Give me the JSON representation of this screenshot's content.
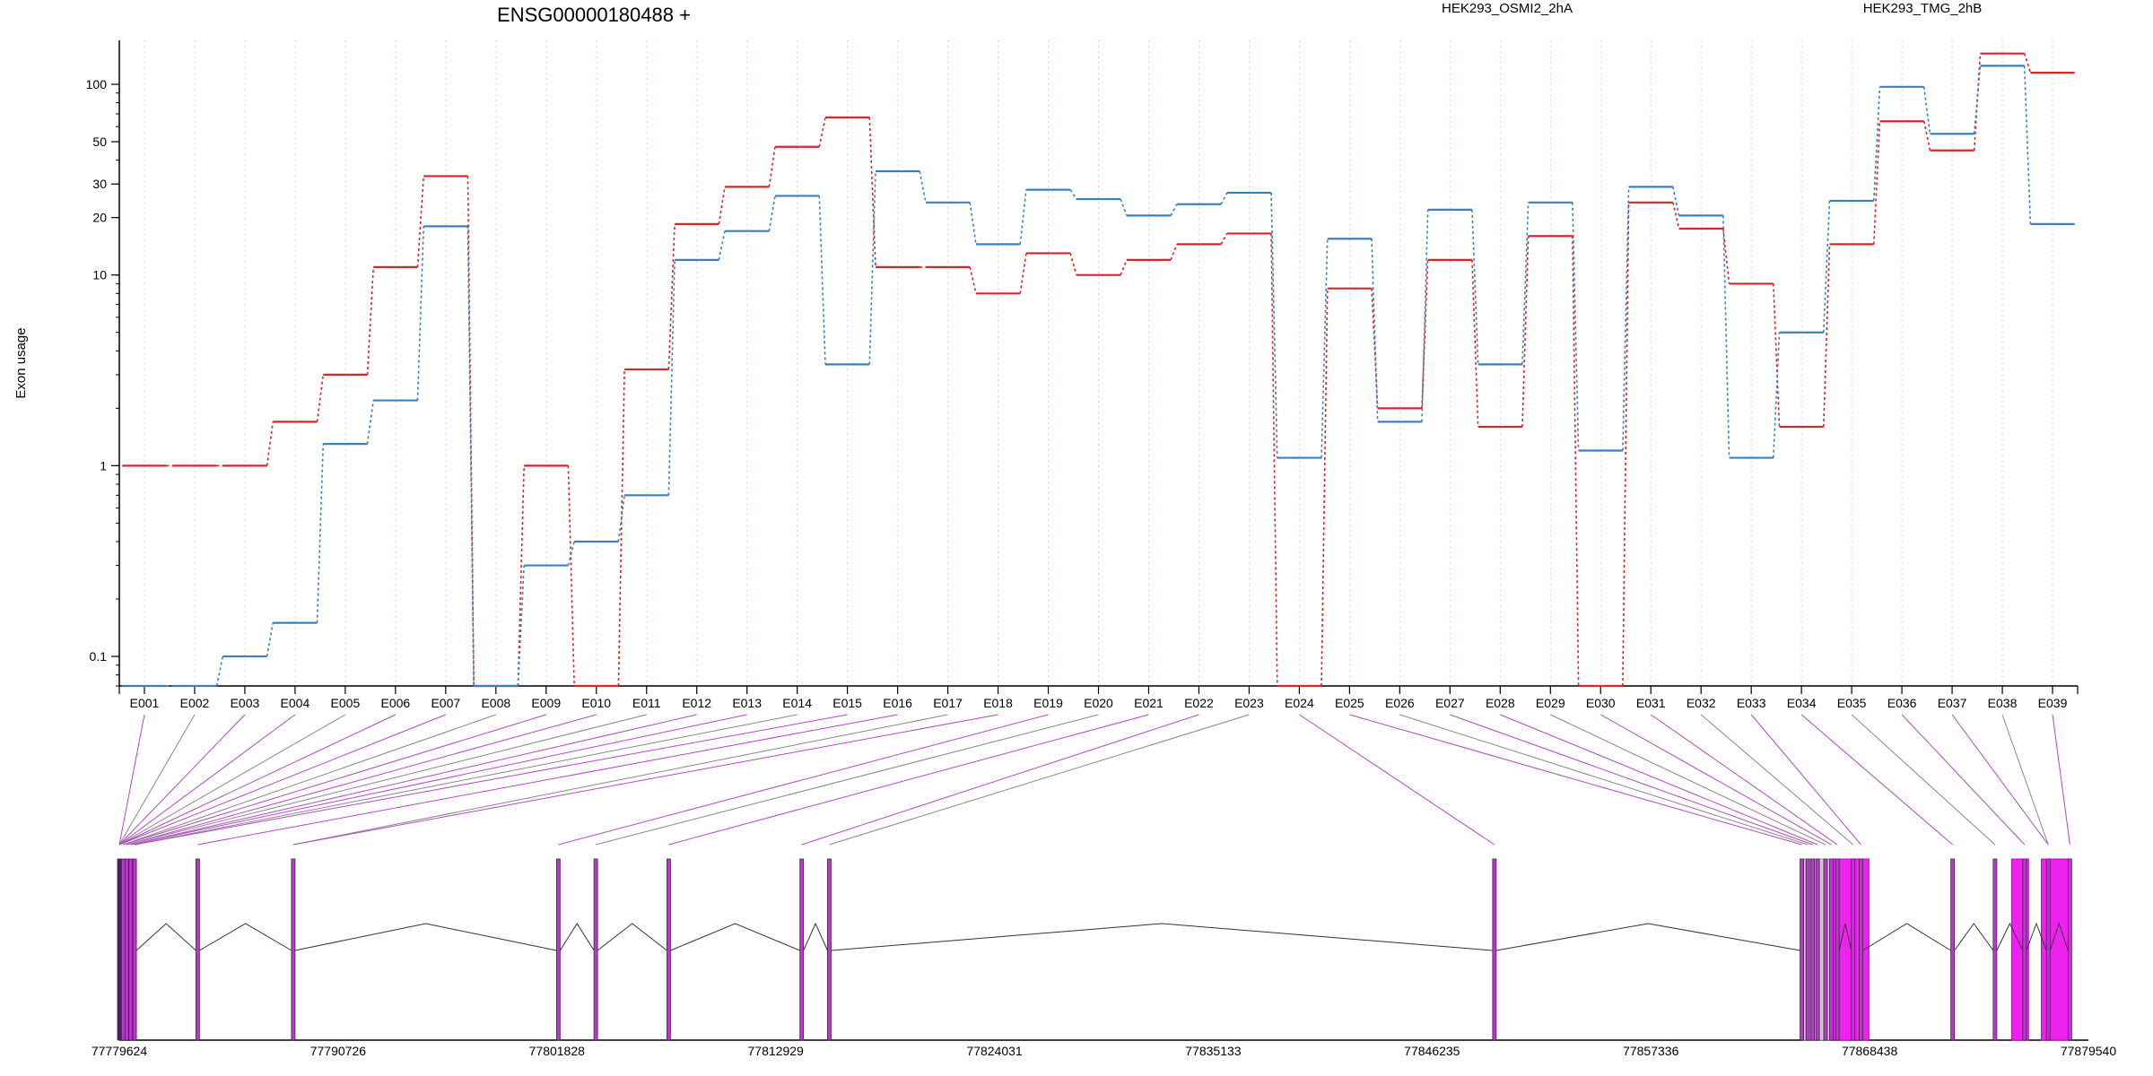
{
  "chart_data": {
    "type": "line",
    "title": "ENSG00000180488 +",
    "ylabel": "Exon usage",
    "y_scale": "log",
    "ylim": [
      0.07,
      170
    ],
    "y_ticks": [
      0.1,
      1,
      10,
      20,
      30,
      50,
      100
    ],
    "y_tick_labels": [
      "0.1",
      "1",
      "10",
      "20",
      "30",
      "50",
      "100"
    ],
    "categories": [
      "E001",
      "E002",
      "E003",
      "E004",
      "E005",
      "E006",
      "E007",
      "E008",
      "E009",
      "E010",
      "E011",
      "E012",
      "E013",
      "E014",
      "E015",
      "E016",
      "E017",
      "E018",
      "E019",
      "E020",
      "E021",
      "E022",
      "E023",
      "E024",
      "E025",
      "E026",
      "E027",
      "E028",
      "E029",
      "E030",
      "E031",
      "E032",
      "E033",
      "E034",
      "E035",
      "E036",
      "E037",
      "E038",
      "E039"
    ],
    "series": [
      {
        "name": "HEK293_OSMI2_2hA",
        "color": "#d62728",
        "values": [
          1,
          1,
          1,
          1.7,
          3,
          11,
          33,
          0.07,
          1,
          0.07,
          3.2,
          18.5,
          29,
          47,
          67,
          11,
          11,
          8,
          13,
          10,
          12,
          14.5,
          16.5,
          0.07,
          8.5,
          2,
          12,
          1.6,
          16,
          0.07,
          24,
          17.5,
          9,
          1.6,
          14.5,
          64,
          45,
          145,
          115
        ]
      },
      {
        "name": "HEK293_TMG_2hB",
        "color": "#3a80c0",
        "values": [
          0.07,
          0.07,
          0.1,
          0.15,
          1.3,
          2.2,
          18,
          0.07,
          0.3,
          0.4,
          0.7,
          12,
          17,
          26,
          3.4,
          35,
          24,
          14.5,
          28,
          25,
          20.5,
          23.5,
          27,
          1.1,
          15.5,
          1.7,
          22,
          3.4,
          24,
          1.2,
          29,
          20.5,
          1.1,
          5,
          24.5,
          97,
          55,
          125,
          18.5
        ]
      }
    ],
    "legend_placement": "top-right",
    "grid": "vertical dotted per exon",
    "genomic_axis": {
      "tick_labels": [
        "77779624",
        "77790726",
        "77801828",
        "77812929",
        "77824031",
        "77835133",
        "77846235",
        "77857336",
        "77868438",
        "77879540"
      ],
      "range": [
        77779624,
        77879540
      ]
    },
    "exon_starts": [
      77779624,
      77779820,
      77780000,
      77780200,
      77780400,
      77783600,
      77788450,
      77801900,
      77803800,
      77807500,
      77814250,
      77815650,
      77849400,
      77865000,
      77865300,
      77865550,
      77865800,
      77866200,
      77866500,
      77866800,
      77867600,
      77868000,
      77872650,
      77874800,
      77876300,
      77877500,
      77878600
    ],
    "gray_blocks": [
      [
        77864950,
        77868400
      ],
      [
        77875650,
        77876500
      ],
      [
        77877150,
        77878600
      ]
    ],
    "magenta_blocks": [
      [
        77866500,
        77868400
      ],
      [
        77875650,
        77876500
      ],
      [
        77877150,
        77878600
      ]
    ]
  }
}
